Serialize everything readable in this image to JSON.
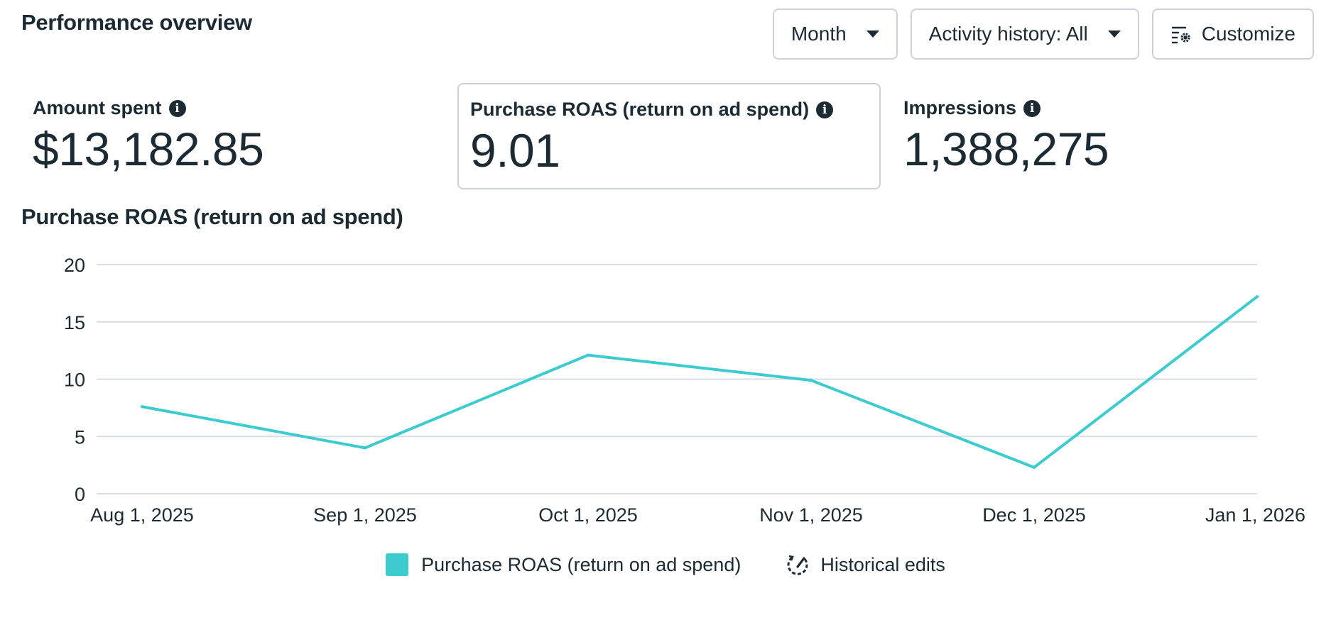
{
  "header": {
    "title": "Performance overview"
  },
  "toolbar": {
    "period_label": "Month",
    "activity_label": "Activity history: All",
    "customize_label": "Customize"
  },
  "metrics": [
    {
      "label": "Amount spent",
      "value": "$13,182.85"
    },
    {
      "label": "Purchase ROAS (return on ad spend)",
      "value": "9.01"
    },
    {
      "label": "Impressions",
      "value": "1,388,275"
    }
  ],
  "colors": {
    "series": "#3ccbcf",
    "text": "#1c2b33",
    "grid": "#dadde1"
  },
  "chart_data": {
    "type": "line",
    "title": "Purchase ROAS (return on ad spend)",
    "xlabel": "",
    "ylabel": "",
    "categories": [
      "Aug 1, 2025",
      "Sep 1, 2025",
      "Oct 1, 2025",
      "Nov 1, 2025",
      "Dec 1, 2025",
      "Jan 1, 2026"
    ],
    "yticks": [
      0,
      5,
      10,
      15,
      20
    ],
    "ylim": [
      0,
      20
    ],
    "grid": true,
    "legend_position": "bottom",
    "series": [
      {
        "name": "Purchase ROAS (return on ad spend)",
        "values": [
          7.6,
          4.0,
          12.1,
          9.9,
          2.3,
          17.2
        ]
      }
    ],
    "legend": {
      "historical_label": "Historical edits"
    }
  }
}
